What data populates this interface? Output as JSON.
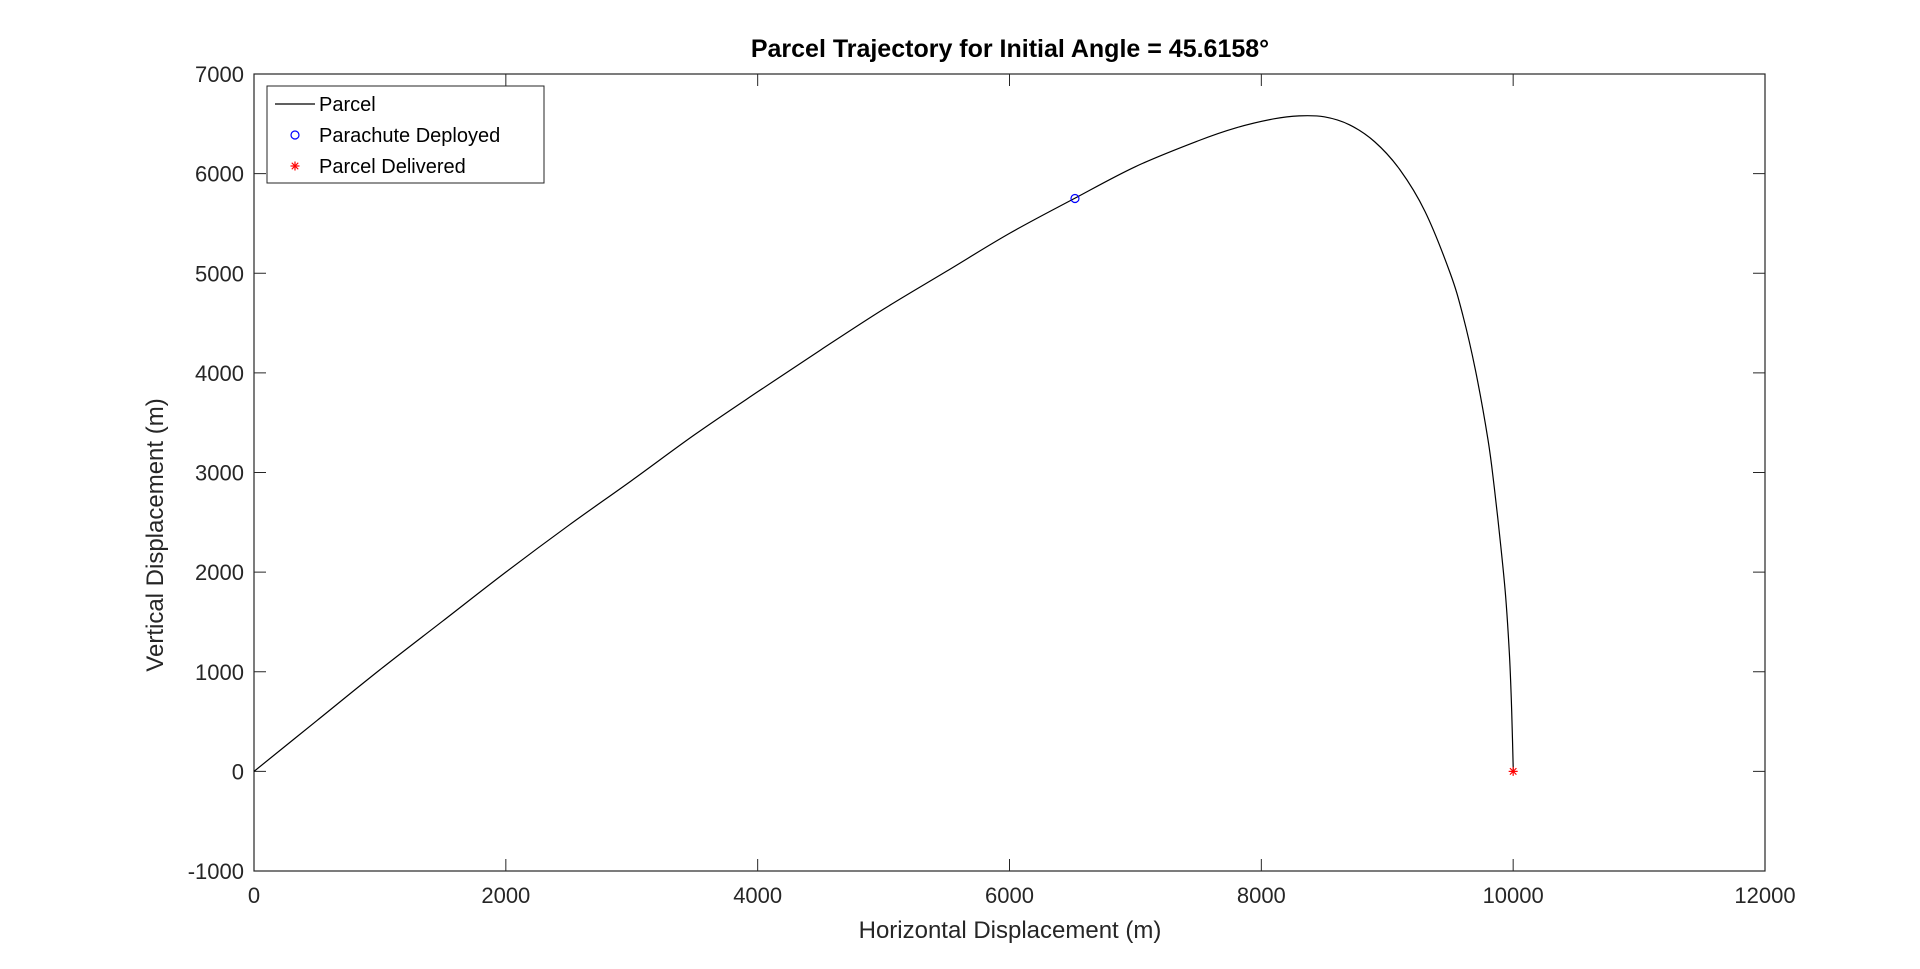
{
  "chart_data": {
    "type": "line",
    "title": "Parcel Trajectory for Initial Angle = 45.6158°",
    "xlabel": "Horizontal Displacement (m)",
    "ylabel": "Vertical Displacement (m)",
    "xlim": [
      0,
      12000
    ],
    "ylim": [
      -1000,
      7000
    ],
    "xticks": [
      0,
      2000,
      4000,
      6000,
      8000,
      10000,
      12000
    ],
    "yticks": [
      -1000,
      0,
      1000,
      2000,
      3000,
      4000,
      5000,
      6000,
      7000
    ],
    "xtick_labels": [
      "0",
      "2000",
      "4000",
      "6000",
      "8000",
      "10000",
      "12000"
    ],
    "ytick_labels": [
      "-1000",
      "0",
      "1000",
      "2000",
      "3000",
      "4000",
      "5000",
      "6000",
      "7000"
    ],
    "grid": true,
    "legend_position": "top-left",
    "legend": [
      {
        "label": "Parcel",
        "marker": "line",
        "color": "#000000"
      },
      {
        "label": "Parachute Deployed",
        "marker": "circle",
        "color": "#0000ff"
      },
      {
        "label": "Parcel Delivered",
        "marker": "asterisk",
        "color": "#ff0000"
      }
    ],
    "series": [
      {
        "name": "Parcel",
        "color": "#000000",
        "x": [
          0,
          500,
          1000,
          1500,
          2000,
          2500,
          3000,
          3500,
          4000,
          4500,
          5000,
          5500,
          6000,
          6500,
          7000,
          7500,
          7800,
          8100,
          8300,
          8500,
          8700,
          8900,
          9100,
          9300,
          9500,
          9600,
          9700,
          9800,
          9850,
          9900,
          9940,
          9970,
          9985,
          9995,
          10000,
          10000
        ],
        "y": [
          0,
          510,
          1020,
          1510,
          2000,
          2470,
          2920,
          3380,
          3810,
          4230,
          4640,
          5020,
          5400,
          5740,
          6070,
          6330,
          6460,
          6550,
          6580,
          6570,
          6490,
          6320,
          6040,
          5620,
          5000,
          4580,
          4030,
          3330,
          2850,
          2280,
          1760,
          1180,
          730,
          300,
          50,
          0
        ]
      }
    ],
    "points": [
      {
        "name": "Parachute Deployed",
        "x": 6520,
        "y": 5750,
        "marker": "circle",
        "color": "#0000ff"
      },
      {
        "name": "Parcel Delivered",
        "x": 10000,
        "y": 0,
        "marker": "asterisk",
        "color": "#ff0000"
      }
    ]
  }
}
